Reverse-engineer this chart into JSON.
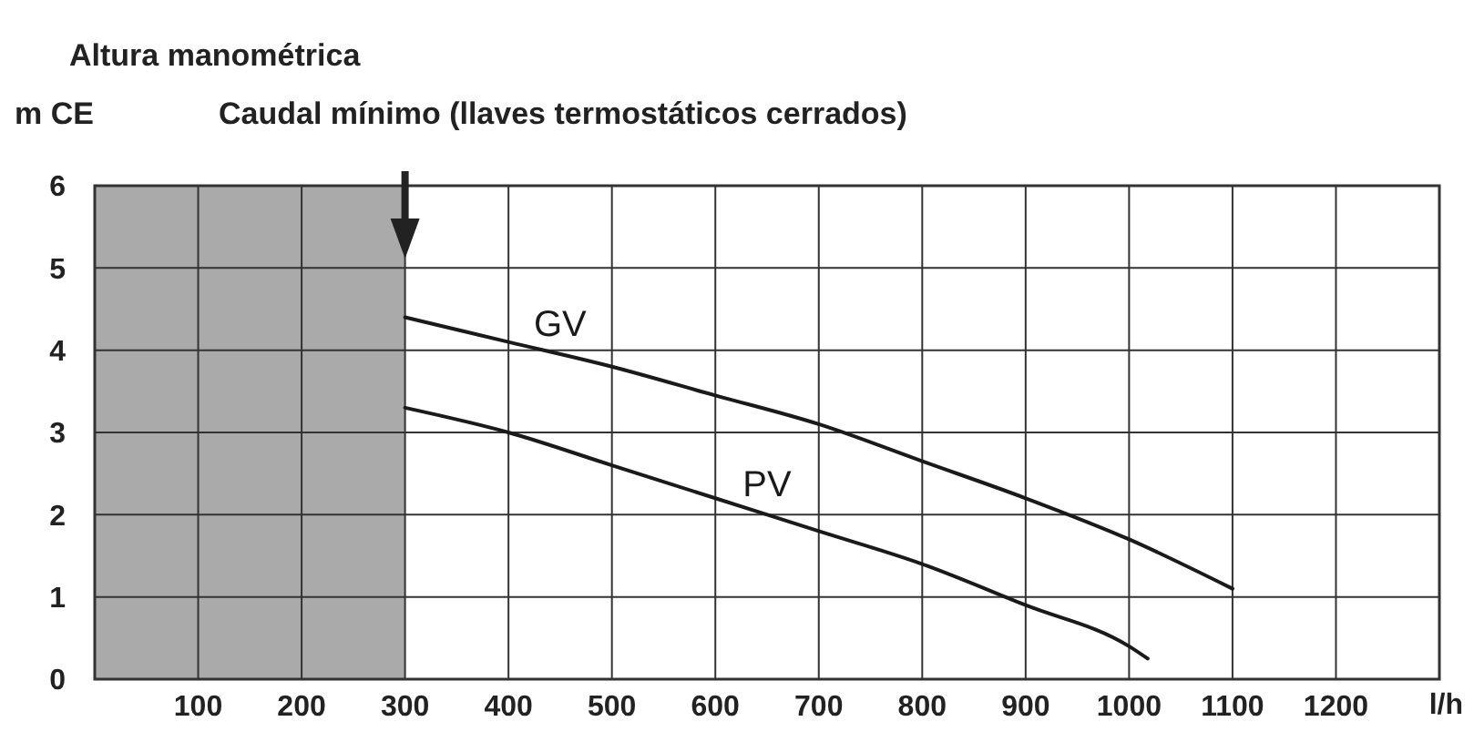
{
  "chart_data": {
    "type": "line",
    "title": "Altura manométrica",
    "ylabel": "m CE",
    "xlabel": "l/h",
    "xlim": [
      0,
      1300
    ],
    "xticks": [
      100,
      200,
      300,
      400,
      500,
      600,
      700,
      800,
      900,
      1000,
      1100,
      1200
    ],
    "ylim": [
      0,
      6
    ],
    "yticks": [
      0,
      1,
      2,
      3,
      4,
      5,
      6
    ],
    "grid": true,
    "marker": "none",
    "line_style": "solid",
    "bands": [
      {
        "axis": "x",
        "from": 0,
        "to": 300,
        "label": "Caudal mínimo (llaves termostáticos cerrados)",
        "color": "#aaaaaa"
      }
    ],
    "series": [
      {
        "name": "GV",
        "color": "#1a1a1a",
        "x": [
          300,
          400,
          500,
          600,
          700,
          800,
          900,
          1000,
          1100
        ],
        "values": [
          4.4,
          4.1,
          3.8,
          3.45,
          3.1,
          2.65,
          2.2,
          1.7,
          1.1
        ]
      },
      {
        "name": "PV",
        "color": "#1a1a1a",
        "x": [
          300,
          400,
          500,
          600,
          700,
          800,
          900,
          1000,
          1018
        ],
        "values": [
          3.3,
          3.0,
          2.6,
          2.2,
          1.8,
          1.4,
          0.9,
          0.4,
          0.25
        ]
      }
    ]
  }
}
